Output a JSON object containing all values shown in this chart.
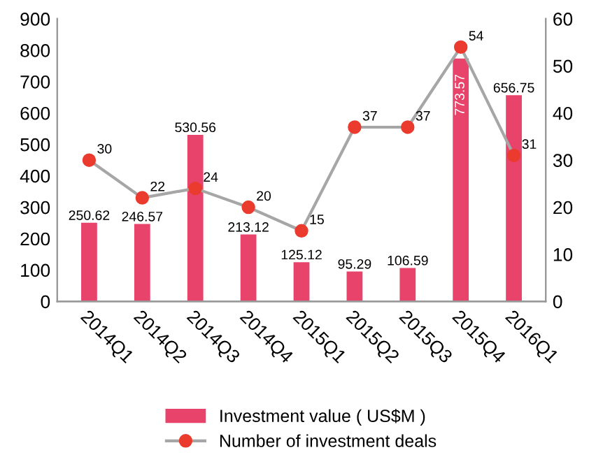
{
  "chart_data": {
    "type": "bar",
    "categories": [
      "2014Q1",
      "2014Q2",
      "2014Q3",
      "2014Q4",
      "2015Q1",
      "2015Q2",
      "2015Q3",
      "2015Q4",
      "2016Q1"
    ],
    "series": [
      {
        "name": "Investment value ( US$M )",
        "color": "#e8436b",
        "values": [
          250.62,
          246.57,
          530.56,
          213.12,
          125.12,
          95.29,
          106.59,
          773.57,
          656.75
        ]
      },
      {
        "name": "Number of investment deals",
        "type": "line",
        "axis": "y2",
        "color": "#a6a6a6",
        "marker": "circle",
        "values": [
          30,
          22,
          24,
          20,
          15,
          37,
          37,
          54,
          31
        ]
      }
    ],
    "ylim": [
      0,
      900
    ],
    "yticks": [
      0,
      100,
      200,
      300,
      400,
      500,
      600,
      700,
      800,
      900
    ],
    "y2lim": [
      0,
      60
    ],
    "y2ticks": [
      0,
      10,
      20,
      30,
      40,
      50,
      60
    ],
    "data_labels": true,
    "grid": false,
    "legend": "bottom"
  }
}
